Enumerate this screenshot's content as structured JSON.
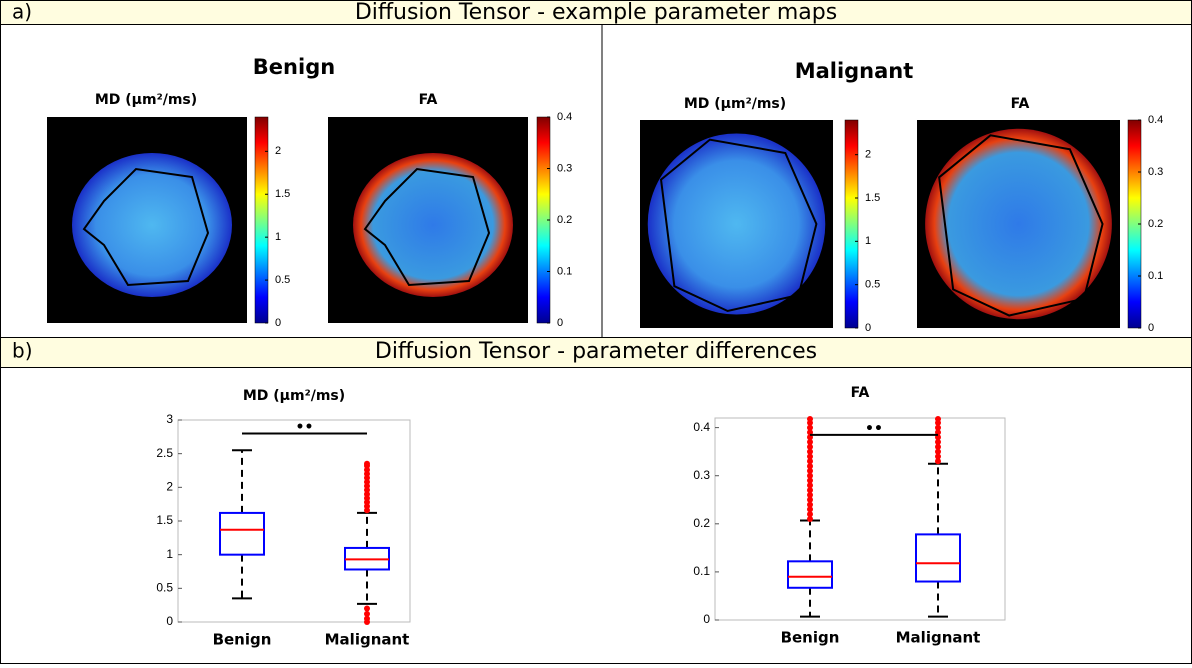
{
  "panel_a": {
    "label": "a)",
    "title": "Diffusion Tensor - example parameter maps",
    "groups": [
      {
        "title": "Benign",
        "maps": [
          {
            "title": "MD (µm²/ms)",
            "clim": [
              0,
              2.4
            ],
            "colorbar_ticks": [
              0,
              0.5,
              1,
              1.5,
              2
            ]
          },
          {
            "title": "FA",
            "clim": [
              0,
              0.4
            ],
            "colorbar_ticks": [
              0,
              0.1,
              0.2,
              0.3,
              0.4
            ]
          }
        ]
      },
      {
        "title": "Malignant",
        "maps": [
          {
            "title": "MD (µm²/ms)",
            "clim": [
              0,
              2.4
            ],
            "colorbar_ticks": [
              0,
              0.5,
              1,
              1.5,
              2
            ]
          },
          {
            "title": "FA",
            "clim": [
              0,
              0.4
            ],
            "colorbar_ticks": [
              0,
              0.1,
              0.2,
              0.3,
              0.4
            ]
          }
        ]
      }
    ]
  },
  "panel_b": {
    "label": "b)",
    "title": "Diffusion Tensor - parameter differences"
  },
  "chart_data": [
    {
      "type": "box",
      "title": "MD (µm²/ms)",
      "categories": [
        "Benign",
        "Malignant"
      ],
      "box_color": "#0000ff",
      "median_color": "#ff0000",
      "outlier_color": "#ff0000",
      "boxes": [
        {
          "whislo": 0.35,
          "q1": 1.0,
          "med": 1.37,
          "q3": 1.62,
          "whishi": 2.55,
          "outliers": []
        },
        {
          "whislo": 0.27,
          "q1": 0.78,
          "med": 0.93,
          "q3": 1.1,
          "whishi": 1.62,
          "outliers": [
            1.66,
            1.72,
            1.78,
            1.84,
            1.9,
            1.96,
            2.02,
            2.08,
            2.14,
            2.2,
            2.26,
            2.32,
            2.35,
            0.2,
            0.12,
            0.05,
            0.0
          ]
        }
      ],
      "ylim": [
        0,
        3
      ],
      "yticks": [
        0,
        0.5,
        1,
        1.5,
        2,
        2.5,
        3
      ],
      "significance": {
        "label": "••",
        "y": 2.8
      }
    },
    {
      "type": "box",
      "title": "FA",
      "categories": [
        "Benign",
        "Malignant"
      ],
      "box_color": "#0000ff",
      "median_color": "#ff0000",
      "outlier_color": "#ff0000",
      "boxes": [
        {
          "whislo": 0.007,
          "q1": 0.067,
          "med": 0.09,
          "q3": 0.122,
          "whishi": 0.207,
          "outliers": [
            0.21,
            0.22,
            0.23,
            0.24,
            0.25,
            0.26,
            0.27,
            0.28,
            0.29,
            0.3,
            0.31,
            0.32,
            0.33,
            0.34,
            0.35,
            0.36,
            0.37,
            0.38,
            0.39,
            0.4,
            0.41,
            0.418
          ]
        },
        {
          "whislo": 0.007,
          "q1": 0.08,
          "med": 0.118,
          "q3": 0.178,
          "whishi": 0.325,
          "outliers": [
            0.33,
            0.34,
            0.35,
            0.36,
            0.37,
            0.38,
            0.39,
            0.4,
            0.41,
            0.418
          ]
        }
      ],
      "ylim": [
        0,
        0.42
      ],
      "yticks": [
        0,
        0.1,
        0.2,
        0.3,
        0.4
      ],
      "significance": {
        "label": "••",
        "y": 0.385
      }
    }
  ]
}
